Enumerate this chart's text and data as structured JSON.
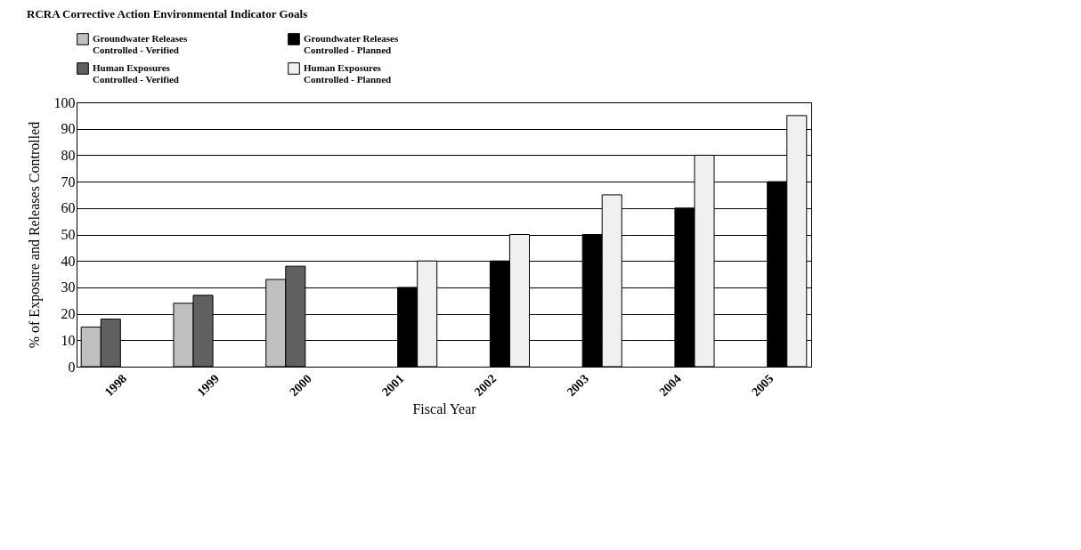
{
  "chart_data": {
    "type": "bar",
    "title": "RCRA Corrective Action Environmental Indicator Goals",
    "xlabel": "Fiscal Year",
    "ylabel": "% of Exposure and Releases Controlled",
    "categories": [
      "1998",
      "1999",
      "2000",
      "2001",
      "2002",
      "2003",
      "2004",
      "2005"
    ],
    "series": [
      {
        "name": "Groundwater Releases Controlled - Verified",
        "color": "#c0c0c0",
        "values": [
          15,
          24,
          33,
          null,
          null,
          null,
          null,
          null
        ]
      },
      {
        "name": "Human Exposures Controlled - Verified",
        "color": "#606060",
        "values": [
          18,
          27,
          38,
          null,
          null,
          null,
          null,
          null
        ]
      },
      {
        "name": "Groundwater Releases Controlled - Planned",
        "color": "#000000",
        "values": [
          null,
          null,
          null,
          30,
          40,
          50,
          60,
          70
        ]
      },
      {
        "name": "Human Exposures Controlled - Planned",
        "color": "#f0f0f0",
        "values": [
          null,
          null,
          null,
          40,
          50,
          65,
          80,
          95
        ]
      }
    ],
    "ylim": [
      0,
      100
    ],
    "yticks": [
      0,
      10,
      20,
      30,
      40,
      50,
      60,
      70,
      80,
      90,
      100
    ],
    "grid": "y",
    "legend": "top left"
  }
}
